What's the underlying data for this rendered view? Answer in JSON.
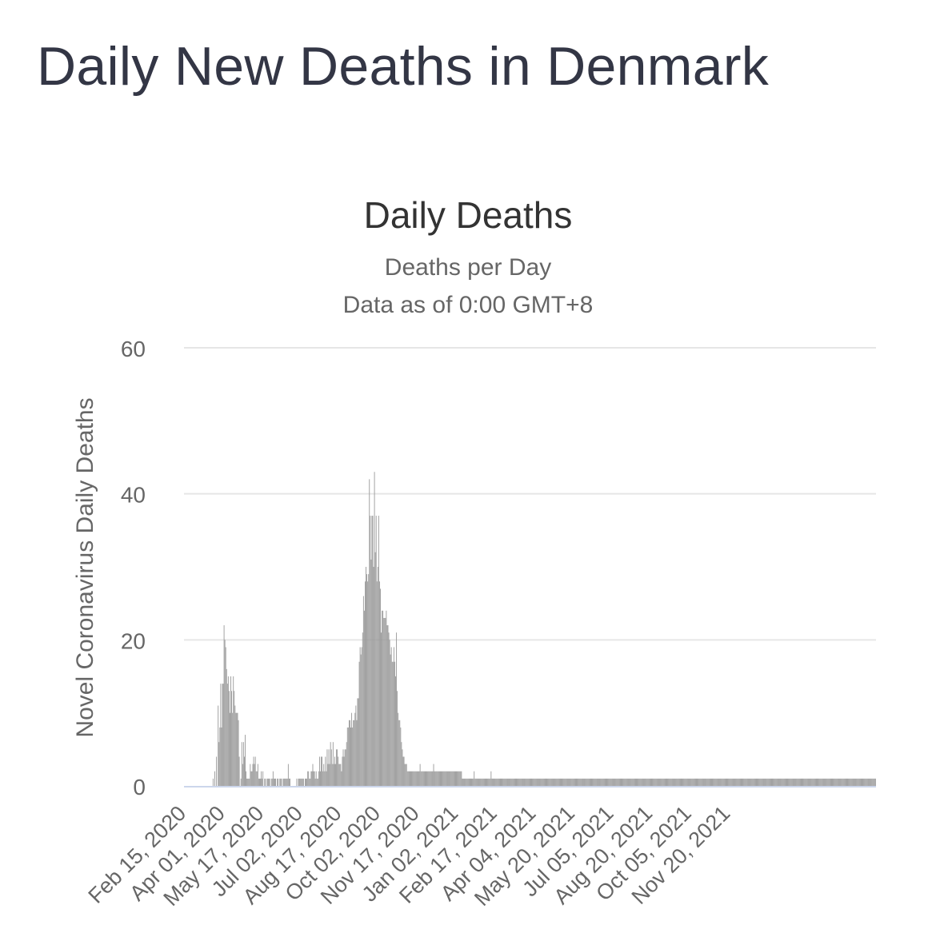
{
  "page": {
    "title": "Daily New Deaths in Denmark"
  },
  "chart_data": {
    "type": "bar",
    "title": "Daily Deaths",
    "subtitle": "Deaths per Day",
    "subtitle2": "Data as of 0:00 GMT+8",
    "ylabel": "Novel Coronavirus Daily Deaths",
    "xlabel": "",
    "ylim": [
      0,
      60
    ],
    "yticks": [
      0,
      20,
      40,
      60
    ],
    "grid": true,
    "legend": "none",
    "colors": {
      "bar": "#999999",
      "grid": "#e6e6e6",
      "axis_line": "#ccd6eb",
      "tick_text": "#666666",
      "title_text": "#333333"
    },
    "xtick_labels": [
      "Feb 15, 2020",
      "Apr 01, 2020",
      "May 17, 2020",
      "Jul 02, 2020",
      "Aug 17, 2020",
      "Oct 02, 2020",
      "Nov 17, 2020",
      "Jan 02, 2021",
      "Feb 17, 2021",
      "Apr 04, 2021",
      "May 20, 2021",
      "Jul 05, 2021",
      "Aug 20, 2021",
      "Oct 05, 2021",
      "Nov 20, 2021"
    ],
    "x_start": "Feb 15, 2020",
    "values": [
      0,
      0,
      0,
      0,
      0,
      0,
      0,
      0,
      0,
      0,
      0,
      0,
      0,
      0,
      0,
      0,
      0,
      0,
      0,
      0,
      0,
      0,
      0,
      0,
      0,
      0,
      0,
      0,
      0,
      0,
      0,
      0,
      0,
      0,
      1,
      0,
      2,
      0,
      4,
      0,
      11,
      6,
      8,
      14,
      8,
      14,
      14,
      22,
      20,
      19,
      16,
      14,
      15,
      13,
      10,
      15,
      13,
      10,
      15,
      13,
      11,
      10,
      10,
      10,
      9,
      4,
      0,
      1,
      6,
      3,
      6,
      4,
      7,
      2,
      1,
      1,
      1,
      1,
      3,
      2,
      2,
      3,
      4,
      3,
      4,
      2,
      2,
      3,
      1,
      1,
      1,
      2,
      1,
      2,
      0,
      1,
      1,
      0,
      1,
      1,
      1,
      1,
      0,
      1,
      1,
      2,
      1,
      1,
      1,
      0,
      1,
      1,
      0,
      1,
      1,
      1,
      0,
      1,
      1,
      1,
      1,
      1,
      1,
      3,
      1,
      1,
      0,
      0,
      0,
      0,
      0,
      0,
      0,
      1,
      0,
      1,
      1,
      1,
      1,
      1,
      1,
      1,
      0,
      1,
      1,
      1,
      2,
      2,
      1,
      1,
      2,
      2,
      3,
      2,
      2,
      1,
      2,
      1,
      1,
      2,
      4,
      2,
      4,
      4,
      2,
      3,
      2,
      4,
      2,
      5,
      3,
      5,
      3,
      6,
      5,
      3,
      6,
      3,
      4,
      3,
      5,
      5,
      4,
      3,
      3,
      3,
      2,
      4,
      5,
      4,
      5,
      5,
      6,
      8,
      8,
      9,
      9,
      8,
      10,
      8,
      9,
      9,
      10,
      11,
      9,
      12,
      12,
      17,
      19,
      18,
      19,
      21,
      26,
      24,
      28,
      30,
      29,
      28,
      29,
      42,
      37,
      31,
      37,
      37,
      30,
      43,
      32,
      37,
      28,
      30,
      37,
      28,
      27,
      21,
      24,
      24,
      23,
      23,
      23,
      24,
      22,
      22,
      21,
      20,
      18,
      19,
      17,
      17,
      19,
      17,
      15,
      21,
      13,
      10,
      9,
      9,
      8,
      6,
      5,
      4,
      4,
      3,
      3,
      3,
      2,
      2,
      2,
      2,
      2,
      2,
      2,
      2,
      2,
      2,
      2,
      2,
      2,
      2,
      2,
      3,
      2,
      2,
      2,
      2,
      2,
      2,
      2,
      2,
      2,
      2,
      2,
      2,
      2,
      2,
      2,
      3,
      2,
      2,
      2,
      2,
      2,
      2,
      2,
      2,
      2,
      2,
      2,
      2,
      2,
      2,
      2,
      2,
      2,
      2,
      2,
      2,
      2,
      2,
      2,
      2,
      2,
      2,
      2,
      2,
      2,
      2,
      2,
      2,
      2,
      1,
      1,
      1,
      1,
      1,
      1,
      1,
      1,
      1,
      1,
      1,
      1,
      1,
      1,
      2,
      1,
      1,
      1,
      1,
      1,
      1,
      1,
      1,
      1,
      1,
      1,
      1,
      1,
      1,
      1,
      1,
      1,
      1,
      1,
      2,
      1,
      1,
      1,
      1,
      1,
      1,
      1,
      1,
      1,
      1,
      1,
      1,
      1,
      1,
      1,
      1,
      1,
      1,
      1,
      1,
      1,
      1,
      1,
      1,
      1,
      1,
      1,
      1,
      1,
      1,
      1,
      1,
      1,
      1,
      1,
      1,
      1,
      1,
      1,
      1,
      1,
      1,
      1,
      1,
      1,
      1,
      1,
      1,
      1,
      1,
      1,
      1,
      1,
      1,
      1,
      1,
      1,
      1,
      1,
      1,
      1,
      1,
      1,
      1,
      1,
      1,
      1,
      1,
      1,
      1,
      1,
      1,
      1,
      1,
      1,
      1,
      1,
      1,
      1,
      1,
      1,
      1,
      1,
      1,
      1,
      1,
      1,
      1,
      1,
      1,
      1,
      1,
      1,
      1,
      1,
      1,
      1,
      1,
      1,
      1,
      1,
      1,
      1,
      1,
      1,
      1,
      1,
      1,
      1,
      1,
      1,
      1,
      1,
      1,
      1,
      1,
      1,
      1,
      1,
      1,
      1,
      1,
      1,
      1,
      1,
      1,
      1,
      1,
      1,
      1,
      1,
      1,
      1,
      1,
      1,
      1,
      1,
      1,
      1,
      1,
      1,
      1,
      1,
      1,
      1,
      1,
      1,
      1,
      1,
      1,
      1,
      1,
      1,
      1,
      1,
      1,
      1,
      1,
      1,
      1,
      1,
      1,
      1,
      1,
      1,
      1,
      1,
      1,
      1,
      1,
      1,
      1,
      1,
      1,
      1,
      1,
      1,
      1,
      1,
      1,
      1,
      1,
      1,
      1,
      1,
      1,
      1,
      1,
      1,
      1,
      1,
      1,
      1,
      1,
      1,
      1,
      1,
      1,
      1,
      1,
      1,
      1,
      1,
      1,
      1,
      1,
      1,
      1,
      1,
      1,
      1,
      1,
      1,
      1,
      1,
      1,
      1,
      1,
      1,
      1,
      1,
      1,
      1,
      1,
      1,
      1,
      1,
      1,
      1,
      1,
      1,
      1,
      1,
      1,
      1,
      1,
      1,
      1,
      1,
      1,
      1,
      1,
      1,
      1,
      1,
      1,
      1,
      1,
      1,
      1,
      1,
      1,
      1,
      1,
      1,
      1,
      1,
      1,
      1,
      1,
      1,
      1,
      1,
      1,
      1,
      1,
      1,
      1,
      1,
      1,
      1,
      1,
      1,
      1,
      1,
      1,
      1,
      1,
      1,
      1,
      1,
      1,
      1,
      1,
      1,
      1,
      1,
      1,
      1,
      1,
      1,
      1,
      1,
      1,
      1,
      1,
      1,
      1,
      1,
      1,
      1,
      1,
      1,
      1,
      1,
      1,
      1,
      1,
      1,
      1,
      1,
      1,
      1,
      1,
      1,
      1,
      1,
      1,
      1,
      1,
      1,
      1,
      1,
      1,
      1,
      1,
      1,
      1,
      1,
      1,
      1,
      1,
      1,
      1,
      1,
      1,
      1,
      1,
      1,
      1,
      1,
      1,
      1,
      1,
      1,
      1,
      1,
      1,
      1,
      1,
      1,
      1,
      1,
      1,
      1,
      1,
      1,
      1,
      1,
      1,
      1,
      1,
      1,
      1,
      1,
      1,
      1,
      1,
      1,
      1,
      1,
      1,
      1,
      1,
      1,
      1,
      1,
      1,
      1,
      1,
      1,
      1,
      1,
      1,
      1,
      1,
      1,
      1,
      1,
      1,
      1,
      1,
      1,
      1,
      1,
      1,
      1,
      1,
      1,
      1,
      1,
      1,
      1,
      1,
      1,
      1,
      1,
      1,
      1,
      1,
      1,
      1,
      1,
      1,
      1,
      1,
      1,
      1,
      1,
      1,
      1,
      1,
      1,
      1,
      1,
      1,
      1,
      1,
      1,
      1,
      1,
      1,
      1,
      1,
      1,
      1,
      1,
      1,
      1,
      1,
      1,
      1,
      1,
      1,
      1,
      1,
      1,
      1,
      1,
      1,
      1,
      1,
      1,
      1,
      1
    ]
  }
}
